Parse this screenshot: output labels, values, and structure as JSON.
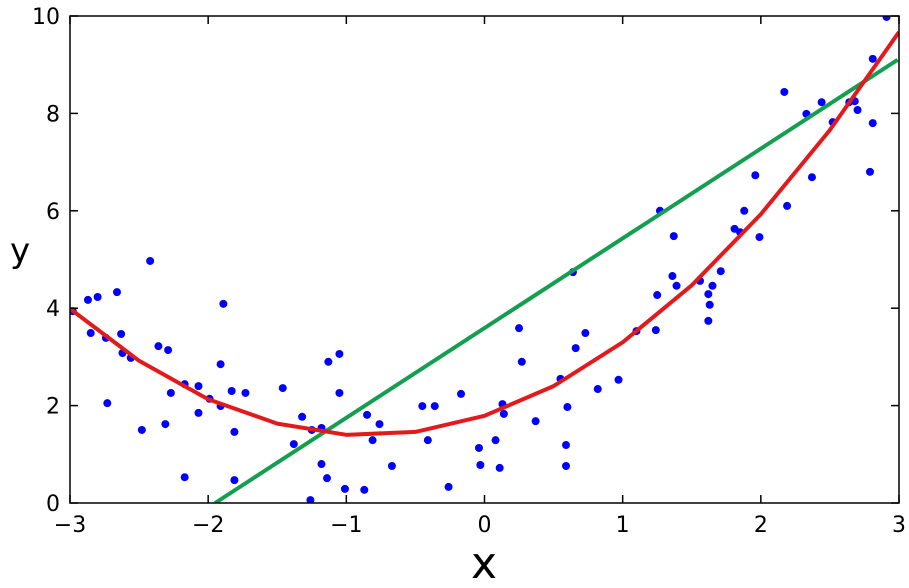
{
  "chart_data": {
    "type": "scatter",
    "xlabel": "x",
    "ylabel": "y",
    "xlim": [
      -3,
      3
    ],
    "ylim": [
      0,
      10
    ],
    "xticks": [
      {
        "value": -3,
        "label": "−3"
      },
      {
        "value": -2,
        "label": "−2"
      },
      {
        "value": -1,
        "label": "−1"
      },
      0,
      1,
      2,
      3
    ],
    "yticks": [
      0,
      2,
      4,
      6,
      8,
      10
    ],
    "series": [
      {
        "mode": "markers",
        "color": "#0000ff",
        "x": [
          -2.98,
          -2.87,
          -2.8,
          -2.85,
          -2.74,
          -2.66,
          -2.63,
          -2.62,
          -2.56,
          -2.73,
          -2.48,
          -2.42,
          -2.36,
          -2.29,
          -2.31,
          -2.27,
          -2.17,
          -2.17,
          -2.07,
          -2.07,
          -1.99,
          -1.91,
          -1.91,
          -1.89,
          -1.83,
          -1.81,
          -1.81,
          -1.73,
          -1.46,
          -1.38,
          -1.32,
          -1.25,
          -1.26,
          -1.18,
          -1.18,
          -1.13,
          -1.14,
          -1.05,
          -1.05,
          -1.01,
          -0.85,
          -0.81,
          -0.76,
          -0.87,
          -0.67,
          -0.45,
          -0.41,
          -0.36,
          -0.26,
          -0.17,
          -0.04,
          -0.03,
          0.08,
          0.11,
          0.13,
          0.14,
          0.25,
          0.27,
          0.37,
          0.55,
          0.59,
          0.59,
          0.6,
          0.64,
          0.66,
          0.73,
          0.82,
          0.97,
          1.1,
          1.24,
          1.25,
          1.27,
          1.36,
          1.39,
          1.37,
          1.56,
          1.62,
          1.62,
          1.63,
          1.65,
          1.71,
          1.81,
          1.85,
          1.88,
          1.96,
          1.99,
          2.17,
          2.19,
          2.33,
          2.37,
          2.44,
          2.52,
          2.64,
          2.68,
          2.7,
          2.79,
          2.81,
          2.81,
          2.91
        ],
        "values": [
          3.94,
          4.17,
          4.23,
          3.49,
          3.39,
          4.33,
          3.47,
          3.08,
          2.98,
          2.05,
          1.5,
          4.97,
          3.22,
          3.14,
          1.62,
          2.26,
          2.44,
          0.53,
          2.4,
          1.85,
          2.14,
          1.99,
          2.85,
          4.09,
          2.3,
          1.46,
          0.47,
          2.26,
          2.36,
          1.21,
          1.77,
          1.5,
          0.06,
          1.54,
          0.8,
          2.9,
          0.51,
          3.06,
          2.26,
          0.29,
          1.81,
          1.29,
          1.62,
          0.27,
          0.76,
          1.99,
          1.29,
          1.99,
          0.33,
          2.24,
          1.13,
          0.78,
          1.29,
          0.72,
          2.03,
          1.83,
          3.59,
          2.9,
          1.68,
          2.55,
          1.19,
          0.76,
          1.97,
          4.74,
          3.18,
          3.49,
          2.34,
          2.53,
          3.53,
          3.55,
          4.27,
          6.0,
          4.66,
          4.46,
          5.48,
          4.56,
          3.74,
          4.29,
          4.07,
          4.46,
          4.76,
          5.63,
          5.56,
          6.0,
          6.73,
          5.46,
          8.44,
          6.1,
          7.99,
          6.69,
          8.23,
          7.82,
          8.23,
          8.25,
          8.07,
          6.8,
          7.8,
          9.12,
          9.98
        ]
      },
      {
        "mode": "line",
        "color": "#149e50",
        "x": [
          -1.95,
          2.99
        ],
        "values": [
          0,
          9.1
        ]
      },
      {
        "mode": "line",
        "color": "#e31a1c",
        "x": [
          -3,
          -2.5,
          -2,
          -1.5,
          -1,
          -0.5,
          0,
          0.5,
          1,
          1.5,
          2,
          2.5,
          3
        ],
        "values": [
          3.99,
          2.92,
          2.13,
          1.63,
          1.4,
          1.46,
          1.79,
          2.4,
          3.3,
          4.47,
          5.93,
          7.66,
          9.67
        ]
      }
    ]
  }
}
